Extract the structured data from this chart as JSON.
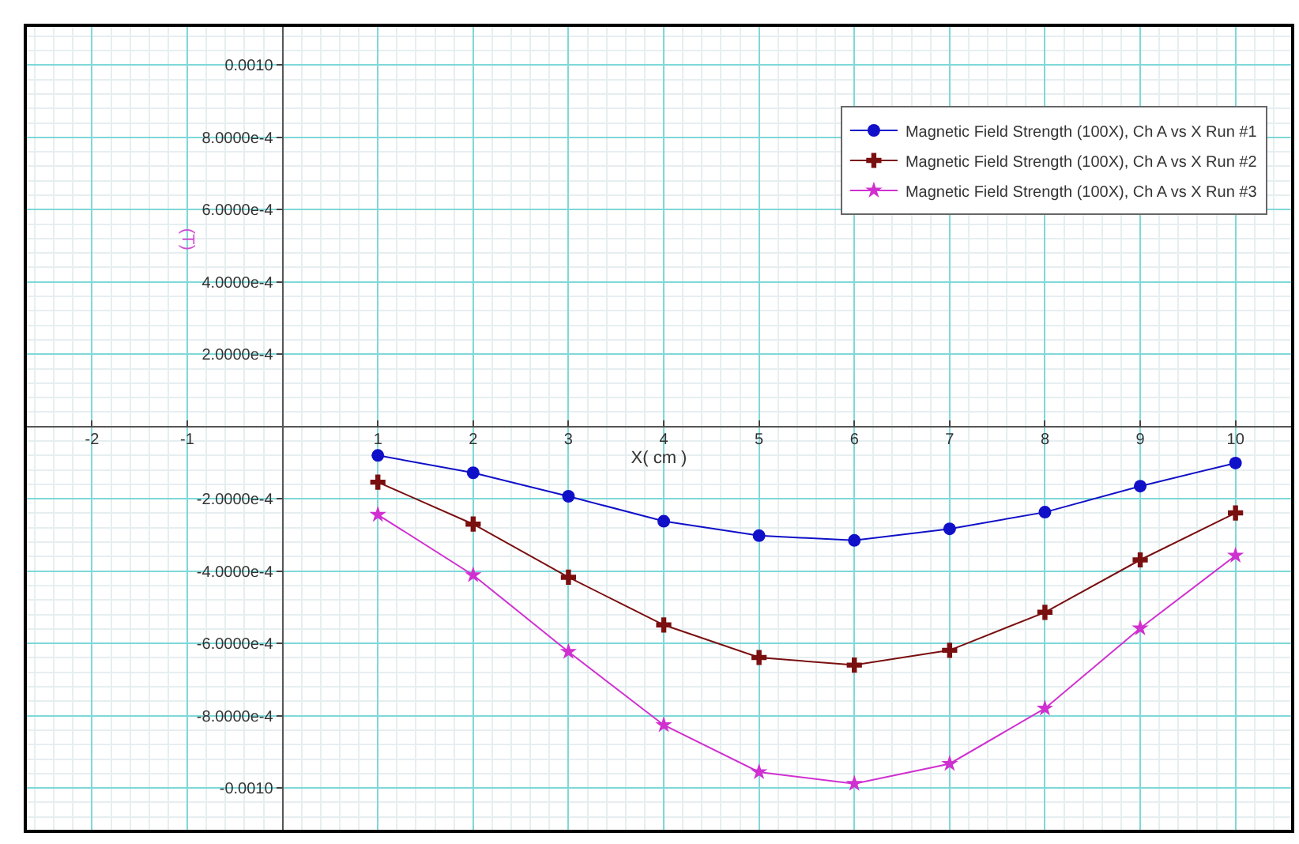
{
  "chart_data": {
    "type": "line",
    "xlabel": "X( cm )",
    "ylabel": "(T)",
    "x": [
      1,
      2,
      3,
      4,
      5,
      6,
      7,
      8,
      9,
      10
    ],
    "series": [
      {
        "name": "Magnetic Field Strength (100X), Ch A vs X Run #1",
        "color": "#1010c8",
        "marker": "circle",
        "values": [
          -8e-05,
          -0.000128,
          -0.000193,
          -0.000262,
          -0.000302,
          -0.000315,
          -0.000283,
          -0.000237,
          -0.000165,
          -0.000101
        ]
      },
      {
        "name": "Magnetic Field Strength (100X), Ch A vs X Run #2",
        "color": "#7a0f0f",
        "marker": "cross",
        "values": [
          -0.000154,
          -0.00027,
          -0.000417,
          -0.000549,
          -0.000639,
          -0.00066,
          -0.000619,
          -0.000514,
          -0.000369,
          -0.000239
        ]
      },
      {
        "name": "Magnetic Field Strength (100X), Ch A vs X Run #3",
        "color": "#d030d0",
        "marker": "star",
        "values": [
          -0.000244,
          -0.000411,
          -0.000623,
          -0.000826,
          -0.000956,
          -0.000988,
          -0.000933,
          -0.00078,
          -0.000558,
          -0.000357
        ]
      }
    ],
    "xlim": [
      -2.7,
      10.6
    ],
    "xticks": [
      -2,
      -1,
      1,
      2,
      3,
      4,
      5,
      6,
      7,
      8,
      9,
      10
    ],
    "ylim": [
      -0.00112,
      0.00111
    ],
    "yticks": [
      {
        "value": -0.001,
        "label": "-0.0010"
      },
      {
        "value": -0.0008,
        "label": "-8.0000e-4"
      },
      {
        "value": -0.0006,
        "label": "-6.0000e-4"
      },
      {
        "value": -0.0004,
        "label": "-4.0000e-4"
      },
      {
        "value": -0.0002,
        "label": "-2.0000e-4"
      },
      {
        "value": 0.0002,
        "label": "2.0000e-4"
      },
      {
        "value": 0.0004,
        "label": "4.0000e-4"
      },
      {
        "value": 0.0006,
        "label": "6.0000e-4"
      },
      {
        "value": 0.0008,
        "label": "8.0000e-4"
      },
      {
        "value": 0.001,
        "label": "0.0010"
      }
    ],
    "grid": true,
    "legend": "top right",
    "line_style": "solid"
  }
}
